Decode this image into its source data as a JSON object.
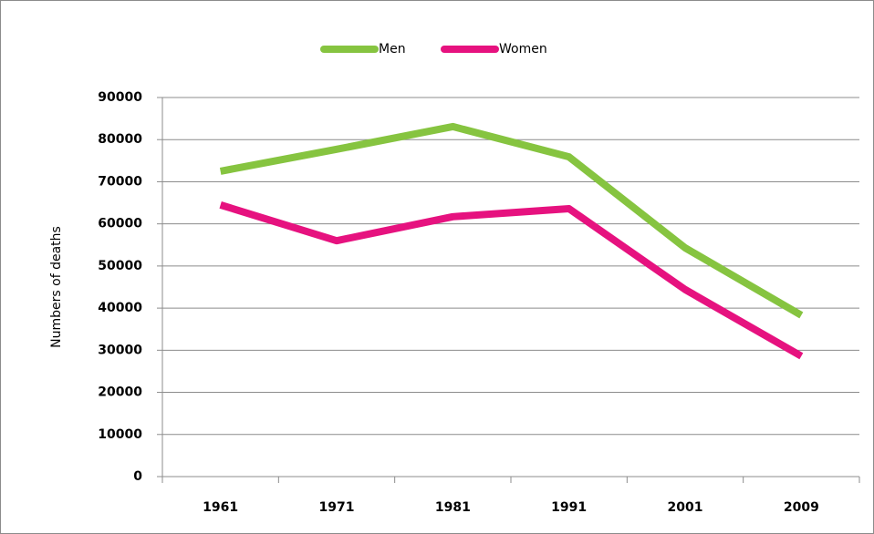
{
  "chart_data": {
    "type": "line",
    "y_label": "Numbers of deaths",
    "categories": [
      "1961",
      "1971",
      "1981",
      "1991",
      "2001",
      "2009"
    ],
    "series": [
      {
        "name": "Men",
        "color": "#86c440",
        "values": [
          72500,
          77700,
          83100,
          75900,
          54300,
          38300
        ]
      },
      {
        "name": "Women",
        "color": "#e6127f",
        "values": [
          64500,
          56000,
          61700,
          63600,
          44400,
          28600
        ]
      }
    ],
    "ylim": [
      0,
      90000
    ],
    "yticks": [
      0,
      10000,
      20000,
      30000,
      40000,
      50000,
      60000,
      70000,
      80000,
      90000
    ],
    "grid": true,
    "legend": "top"
  }
}
